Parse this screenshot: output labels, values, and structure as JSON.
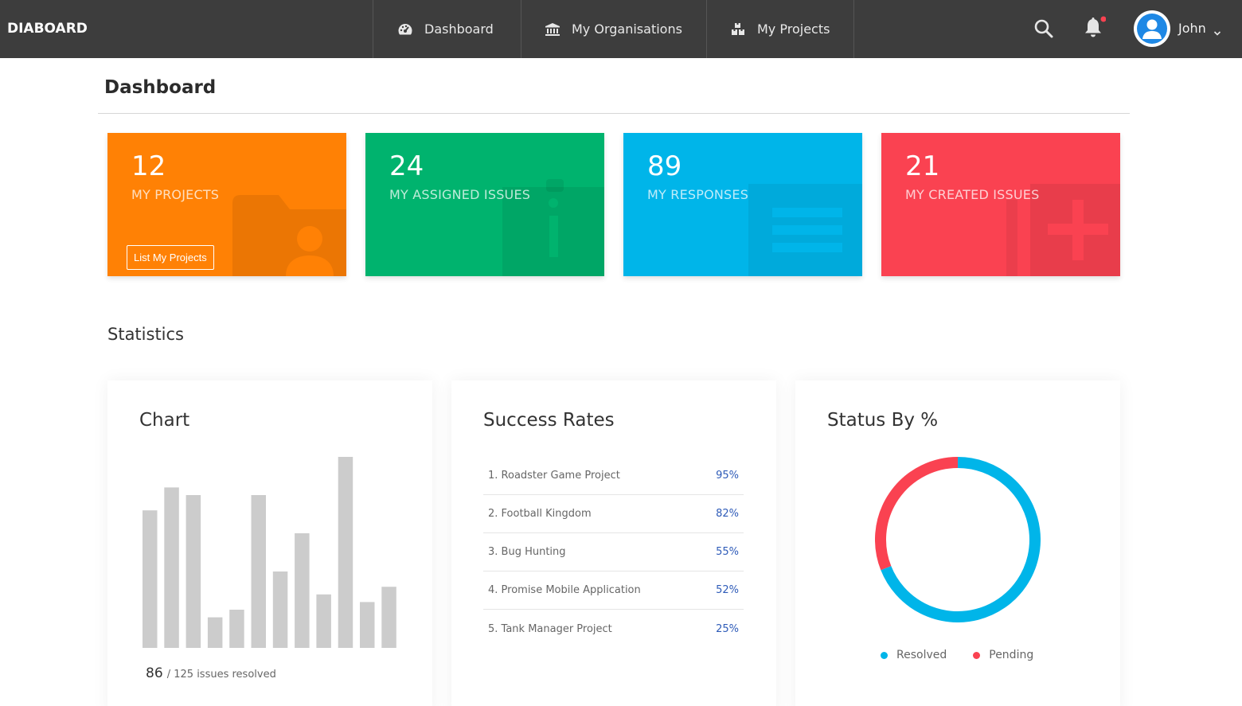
{
  "header": {
    "brand": "DIABOARD",
    "nav": [
      {
        "label": "Dashboard",
        "icon": "tachometer-icon"
      },
      {
        "label": "My Organisations",
        "icon": "bank-icon"
      },
      {
        "label": "My Projects",
        "icon": "cubes-icon"
      }
    ],
    "user_name": "John",
    "notification_dot_color": "#fa4251"
  },
  "page": {
    "title": "Dashboard"
  },
  "cards": [
    {
      "count": "12",
      "label": "MY PROJECTS",
      "color": "#ff8105",
      "button": "List My Projects",
      "icon": "folder-user-icon"
    },
    {
      "count": "24",
      "label": "MY ASSIGNED ISSUES",
      "color": "#00b36e",
      "icon": "clipboard-info-icon"
    },
    {
      "count": "89",
      "label": "MY RESPONSES",
      "color": "#00b5e9",
      "icon": "list-icon"
    },
    {
      "count": "21",
      "label": "MY CREATED ISSUES",
      "color": "#fa4251",
      "icon": "add-document-icon"
    }
  ],
  "statistics": {
    "title": "Statistics",
    "chart_panel": {
      "title": "Chart",
      "resolved": "86",
      "resolved_suffix": "/ 125 issues resolved"
    },
    "success_panel": {
      "title": "Success Rates",
      "rows": [
        {
          "name": "1. Roadster Game Project",
          "value": "95%"
        },
        {
          "name": "2. Football Kingdom",
          "value": "82%"
        },
        {
          "name": "3. Bug Hunting",
          "value": "55%"
        },
        {
          "name": "4. Promise Mobile Application",
          "value": "52%"
        },
        {
          "name": "5. Tank Manager Project",
          "value": "25%"
        }
      ]
    },
    "status_panel": {
      "title": "Status By %",
      "legend": [
        {
          "label": "Resolved",
          "color": "#00b5e9"
        },
        {
          "label": "Pending",
          "color": "#fa4251"
        }
      ]
    }
  },
  "chart_data": [
    {
      "type": "bar",
      "values": [
        72,
        84,
        80,
        16,
        20,
        80,
        40,
        60,
        28,
        100,
        24,
        32
      ],
      "color": "#cccccc",
      "ylim": [
        0,
        100
      ],
      "grid": false
    },
    {
      "type": "pie",
      "categories": [
        "Resolved",
        "Pending"
      ],
      "values": [
        69,
        31
      ],
      "colors": [
        "#00b5e9",
        "#fa4251"
      ],
      "donut": true,
      "legend": "bottom"
    }
  ]
}
